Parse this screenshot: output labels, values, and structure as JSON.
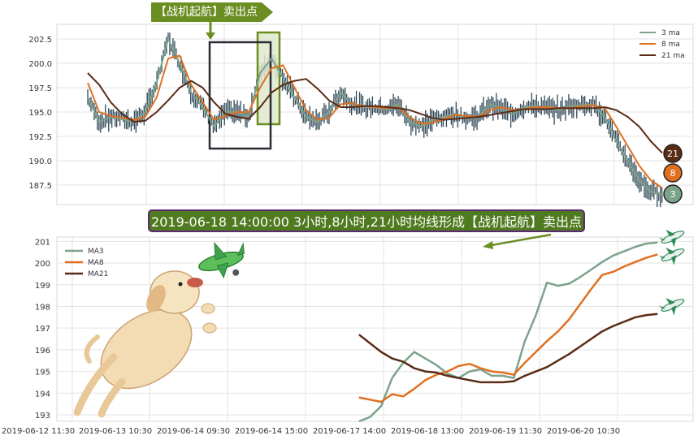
{
  "annotations": {
    "signal_label": "【战机起航】卖出点",
    "banner_text": "2019-06-18 14:00:00 3小时,8小时,21小时均线形成【战机起航】卖出点",
    "end_badges": [
      "21",
      "8",
      "3"
    ]
  },
  "colors": {
    "ma3": "#7ba38a",
    "ma8": "#e07020",
    "ma21": "#5a2c16",
    "candle": "#2f4858",
    "signal_green": "#6b8e23",
    "highlight_fill": "#dfe9cf",
    "frame_dark": "#2b2b33"
  },
  "chart_data": [
    {
      "type": "line",
      "title": "",
      "ylim": [
        185.5,
        204
      ],
      "y_ticks": [
        "202.5",
        "200.0",
        "197.5",
        "195.0",
        "192.5",
        "190.0",
        "187.5"
      ],
      "grid": true,
      "legend_position": "top-right",
      "candles": true,
      "series": [
        {
          "name": "3 ma",
          "x": [
            0,
            2,
            4,
            6,
            8,
            10,
            12,
            14,
            16,
            18,
            20,
            22,
            24,
            26,
            28,
            30,
            32,
            34,
            36,
            38,
            40,
            42,
            44,
            46,
            48,
            50,
            52,
            54,
            56,
            58,
            60,
            62,
            64,
            66,
            68,
            70,
            72,
            74,
            76,
            78,
            80,
            82,
            84,
            86,
            88,
            90,
            92,
            94,
            96,
            98,
            100
          ],
          "values": [
            196.5,
            194,
            194.5,
            194.3,
            194,
            195,
            198,
            202.5,
            200,
            197,
            195.5,
            193.5,
            195,
            195,
            194.5,
            199,
            200.5,
            198.5,
            196.5,
            194.5,
            194,
            195,
            197,
            195.8,
            195.5,
            195.5,
            195.3,
            195.8,
            194,
            193.5,
            194.2,
            194.5,
            194.8,
            194.3,
            194.5,
            195.8,
            195.3,
            194.8,
            195.5,
            195.6,
            195.4,
            195.2,
            195.6,
            195.7,
            195.8,
            194.5,
            192,
            190,
            188,
            186.8,
            186.6
          ]
        },
        {
          "name": "8 ma",
          "x": [
            0,
            2,
            4,
            6,
            8,
            10,
            12,
            14,
            16,
            18,
            20,
            22,
            24,
            26,
            28,
            30,
            32,
            34,
            36,
            38,
            40,
            42,
            44,
            46,
            48,
            50,
            52,
            54,
            56,
            58,
            60,
            62,
            64,
            66,
            68,
            70,
            72,
            74,
            76,
            78,
            80,
            82,
            84,
            86,
            88,
            90,
            92,
            94,
            96,
            98,
            100
          ],
          "values": [
            198,
            195,
            194.6,
            194.4,
            194.2,
            194.5,
            196.5,
            200.5,
            200.8,
            197.8,
            196,
            194.2,
            194.6,
            195,
            195,
            197.5,
            199.5,
            199.8,
            197.5,
            195.2,
            194.2,
            194.4,
            195.8,
            195.9,
            195.6,
            195.5,
            195.4,
            195.5,
            194.5,
            193.8,
            193.9,
            194.3,
            194.7,
            194.6,
            194.5,
            195.2,
            195.5,
            195.2,
            195.3,
            195.5,
            195.5,
            195.4,
            195.4,
            195.6,
            195.7,
            195.4,
            193.5,
            191.5,
            189.5,
            188,
            187.2
          ]
        },
        {
          "name": "21 ma",
          "x": [
            0,
            2,
            4,
            6,
            8,
            10,
            12,
            14,
            16,
            18,
            20,
            22,
            24,
            26,
            28,
            30,
            32,
            34,
            36,
            38,
            40,
            42,
            44,
            46,
            48,
            50,
            52,
            54,
            56,
            58,
            60,
            62,
            64,
            66,
            68,
            70,
            72,
            74,
            76,
            78,
            80,
            82,
            84,
            86,
            88,
            90,
            92,
            94,
            96,
            98,
            100
          ],
          "values": [
            199,
            197.8,
            196,
            194.8,
            194,
            194.1,
            195,
            196.2,
            197.5,
            198.2,
            197.5,
            196,
            194.8,
            194.5,
            194.3,
            195.5,
            197,
            197.8,
            198.2,
            198.4,
            197.4,
            196.2,
            195.5,
            195.5,
            195.6,
            195.6,
            195.5,
            195.4,
            195.2,
            194.8,
            194.4,
            194.2,
            194.3,
            194.4,
            194.5,
            194.7,
            194.9,
            195.1,
            195.3,
            195.3,
            195.3,
            195.4,
            195.4,
            195.4,
            195.4,
            195.5,
            195.2,
            194.5,
            193.5,
            192,
            190.8
          ]
        }
      ]
    },
    {
      "type": "line",
      "title": "",
      "ylim": [
        192.7,
        201.2
      ],
      "y_ticks": [
        "201",
        "200",
        "199",
        "198",
        "197",
        "196",
        "195",
        "194",
        "193"
      ],
      "x_tick_labels": [
        "2019-06-12 11:30",
        "2019-06-13 10:30",
        "2019-06-14 09:30",
        "2019-06-14 15:00",
        "2019-06-17 14:00",
        "2019-06-18 13:00",
        "2019-06-19 11:30",
        "2019-06-20 10:30"
      ],
      "grid": true,
      "legend_position": "top-left",
      "series": [
        {
          "name": "MA3",
          "x": [
            26,
            27,
            28,
            29,
            30,
            31,
            32,
            33,
            34,
            35,
            36,
            37,
            38,
            39,
            40,
            41,
            42,
            43,
            44,
            45,
            46,
            47,
            48,
            49,
            50,
            51,
            52,
            53
          ],
          "values": [
            192.7,
            192.9,
            193.4,
            194.7,
            195.4,
            195.9,
            195.6,
            195.3,
            194.9,
            194.7,
            195.0,
            195.1,
            194.8,
            194.8,
            194.7,
            196.4,
            197.6,
            199.1,
            198.95,
            199.05,
            199.35,
            199.7,
            200.05,
            200.35,
            200.55,
            200.75,
            200.9,
            200.95
          ]
        },
        {
          "name": "MA8",
          "x": [
            26,
            27,
            28,
            29,
            30,
            31,
            32,
            33,
            34,
            35,
            36,
            37,
            38,
            39,
            40,
            41,
            42,
            43,
            44,
            45,
            46,
            47,
            48,
            49,
            50,
            51,
            52,
            53
          ],
          "values": [
            193.8,
            193.7,
            193.6,
            193.95,
            193.85,
            194.2,
            194.6,
            194.85,
            195.0,
            195.25,
            195.35,
            195.15,
            195.0,
            194.95,
            194.85,
            195.4,
            195.9,
            196.4,
            196.85,
            197.4,
            198.1,
            198.8,
            199.45,
            199.6,
            199.85,
            200.05,
            200.25,
            200.4
          ]
        },
        {
          "name": "MA21",
          "x": [
            26,
            27,
            28,
            29,
            30,
            31,
            32,
            33,
            34,
            35,
            36,
            37,
            38,
            39,
            40,
            41,
            42,
            43,
            44,
            45,
            46,
            47,
            48,
            49,
            50,
            51,
            52,
            53
          ],
          "values": [
            196.7,
            196.3,
            195.9,
            195.6,
            195.45,
            195.15,
            195.0,
            194.95,
            194.8,
            194.7,
            194.6,
            194.5,
            194.5,
            194.5,
            194.55,
            194.8,
            195.0,
            195.2,
            195.5,
            195.8,
            196.15,
            196.5,
            196.85,
            197.1,
            197.3,
            197.5,
            197.6,
            197.65
          ]
        }
      ]
    }
  ]
}
